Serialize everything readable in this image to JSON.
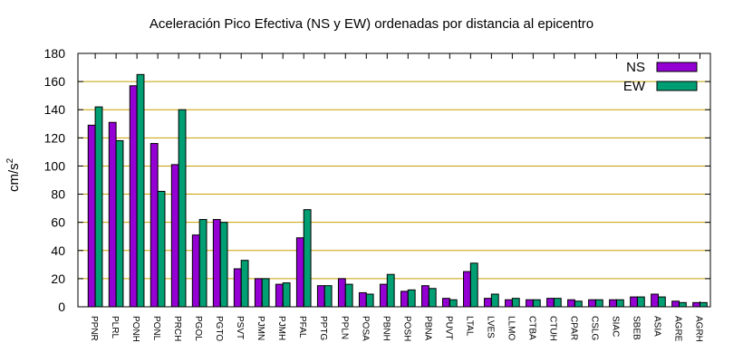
{
  "chart_data": {
    "type": "bar",
    "title": "Aceleración Pico Efectiva (NS y EW) ordenadas por distancia al epicentro",
    "xlabel": "",
    "ylabel": {
      "base": "cm/s",
      "exponent": "2"
    },
    "ylim": [
      0,
      180
    ],
    "yticks": [
      0,
      20,
      40,
      60,
      80,
      100,
      120,
      140,
      160,
      180
    ],
    "grid": "horizontal",
    "legend_position": "top-right",
    "categories": [
      "PPNR",
      "PLRL",
      "PONH",
      "PONL",
      "PRCH",
      "PGOL",
      "PGTO",
      "PSVT",
      "PJMN",
      "PJMH",
      "PFAL",
      "PPTG",
      "PPLN",
      "POSA",
      "PBNH",
      "POSH",
      "PBNA",
      "PUVT",
      "LTAL",
      "LVES",
      "LLMO",
      "CTBA",
      "CTUH",
      "CPAR",
      "CSLG",
      "SIAC",
      "SBEB",
      "ASIA",
      "AGRE",
      "AGRH"
    ],
    "series": [
      {
        "name": "NS",
        "color": "#9400d3",
        "values": [
          129,
          131,
          157,
          116,
          101,
          51,
          62,
          27,
          20,
          16,
          49,
          15,
          20,
          10,
          16,
          11,
          15,
          6,
          25,
          6,
          5,
          5,
          6,
          5,
          5,
          5,
          7,
          9,
          4,
          3
        ]
      },
      {
        "name": "EW",
        "color": "#009e73",
        "values": [
          142,
          118,
          165,
          82,
          140,
          62,
          60,
          33,
          20,
          17,
          69,
          15,
          16,
          9,
          23,
          12,
          13,
          5,
          31,
          9,
          6,
          5,
          6,
          4,
          5,
          5,
          7,
          7,
          3,
          3
        ]
      }
    ]
  }
}
